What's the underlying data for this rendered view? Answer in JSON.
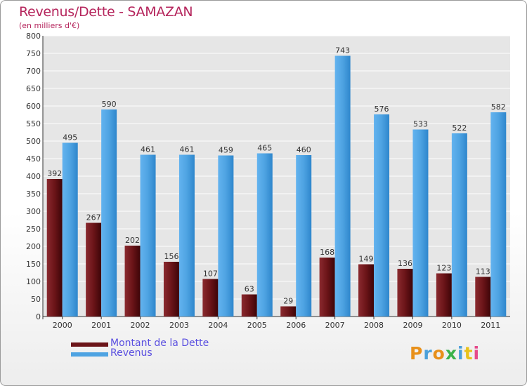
{
  "header": {
    "title": "Revenus/Dette - SAMAZAN",
    "subtitle": "(en milliers d'€)"
  },
  "legend": {
    "items": [
      {
        "label": "Montant de la Dette",
        "color": "#6b1418"
      },
      {
        "label": "Revenus",
        "color": "#4ea3e2"
      }
    ]
  },
  "logo": {
    "letters": [
      "P",
      "r",
      "o",
      "x",
      "i",
      "t",
      "i"
    ],
    "colors": [
      "#e8901a",
      "#4aa0da",
      "#e8901a",
      "#3ab24a",
      "#4aa0da",
      "#e8c21a",
      "#e64a8a"
    ]
  },
  "chart_data": {
    "type": "bar",
    "title": "Revenus/Dette - SAMAZAN",
    "subtitle": "(en milliers d'€)",
    "categories": [
      "2000",
      "2001",
      "2002",
      "2003",
      "2004",
      "2005",
      "2006",
      "2007",
      "2008",
      "2009",
      "2010",
      "2011"
    ],
    "series": [
      {
        "name": "Montant de la Dette",
        "color": "#6b1418",
        "values": [
          392,
          267,
          202,
          156,
          107,
          63,
          29,
          168,
          149,
          136,
          123,
          113
        ]
      },
      {
        "name": "Revenus",
        "color": "#4ea3e2",
        "values": [
          495,
          590,
          461,
          461,
          459,
          465,
          460,
          743,
          576,
          533,
          522,
          582
        ]
      }
    ],
    "ylim": [
      0,
      800
    ],
    "yticks": [
      0,
      50,
      100,
      150,
      200,
      250,
      300,
      350,
      400,
      450,
      500,
      550,
      600,
      650,
      700,
      750,
      800
    ],
    "grid": true,
    "legend_position": "bottom-left"
  }
}
